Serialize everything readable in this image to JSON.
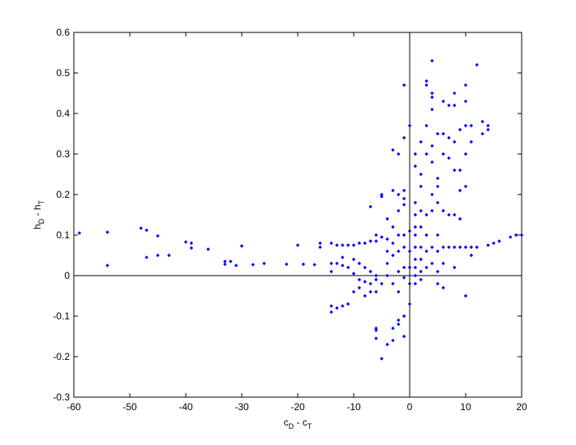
{
  "chart_data": {
    "type": "scatter",
    "xlabel": [
      "c",
      "D",
      " - c",
      "T"
    ],
    "ylabel": [
      "h",
      "D",
      " - h",
      "T"
    ],
    "xlim": [
      -60,
      20
    ],
    "xticks": [
      -60,
      -50,
      -40,
      -30,
      -20,
      -10,
      0,
      10,
      20
    ],
    "ylim": [
      -0.3,
      0.6
    ],
    "yticks": [
      -0.3,
      -0.2,
      -0.1,
      0,
      0.1,
      0.2,
      0.3,
      0.4,
      0.5,
      0.6
    ],
    "reference_lines": {
      "x": 0,
      "y": 0
    },
    "x": [
      -59,
      -54,
      -54,
      -48,
      -47,
      -47,
      -45,
      -45,
      -43,
      -40,
      -39,
      -39,
      -36,
      -33,
      -33,
      -32,
      -31,
      -30,
      -28,
      -26,
      -22,
      -20,
      -19,
      -17,
      -16,
      -16,
      -14,
      -14,
      -14,
      -14,
      -14,
      -13,
      -12,
      -11,
      -13,
      -12,
      -11,
      -10,
      -9,
      -8,
      -7,
      -6,
      -12,
      -10,
      -9,
      -8,
      -7,
      -6,
      -10,
      -9,
      -8,
      -7,
      -6,
      -5,
      -10,
      -9,
      -8,
      -7,
      -6,
      -11,
      -12,
      -13,
      -7,
      -6,
      -5,
      -5,
      -5,
      -4,
      -4,
      -4,
      -4,
      -4,
      -3,
      -3,
      -3,
      -3,
      -3,
      -3,
      -2,
      -2,
      -2,
      -2,
      -2,
      -2,
      -2,
      -1,
      -1,
      -1,
      -1,
      -1,
      -1,
      -1,
      -1,
      -1,
      -2,
      -3,
      -4,
      -5,
      -6,
      -6,
      -6,
      -3,
      -2,
      -1,
      -1,
      0,
      0,
      0,
      0,
      0,
      0,
      1,
      1,
      1,
      1,
      1,
      1,
      1,
      1,
      1,
      1,
      1,
      2,
      2,
      2,
      2,
      2,
      2,
      2,
      2,
      2,
      3,
      3,
      3,
      3,
      3,
      3,
      3,
      3,
      4,
      4,
      4,
      4,
      4,
      4,
      4,
      4,
      4,
      4,
      5,
      5,
      5,
      5,
      5,
      5,
      5,
      5,
      6,
      6,
      6,
      6,
      6,
      6,
      7,
      7,
      7,
      7,
      7,
      8,
      8,
      8,
      8,
      8,
      8,
      8,
      9,
      9,
      9,
      9,
      9,
      10,
      10,
      10,
      10,
      10,
      10,
      11,
      11,
      11,
      11,
      12,
      12,
      13,
      13,
      14,
      14,
      14,
      15,
      16,
      18,
      19,
      20,
      6,
      10
    ],
    "series": [
      {
        "color": "#0000ff",
        "values": [
          0.105,
          0.107,
          0.025,
          0.117,
          0.112,
          0.045,
          0.098,
          0.05,
          0.05,
          0.083,
          0.08,
          0.068,
          0.065,
          0.035,
          0.028,
          0.035,
          0.025,
          0.073,
          0.027,
          0.03,
          0.028,
          0.075,
          0.028,
          0.027,
          0.08,
          0.07,
          0.08,
          0.03,
          0.01,
          -0.075,
          -0.09,
          -0.08,
          -0.075,
          -0.07,
          0.075,
          0.075,
          0.075,
          0.075,
          0.08,
          0.08,
          0.085,
          0.085,
          0.045,
          0.04,
          0.03,
          0.02,
          0.01,
          0.0,
          0.005,
          -0.01,
          -0.015,
          -0.02,
          -0.01,
          -0.02,
          -0.04,
          -0.03,
          -0.05,
          -0.04,
          -0.04,
          0.02,
          0.025,
          0.03,
          0.17,
          0.1,
          0.095,
          0.2,
          0.195,
          0.14,
          0.09,
          0.06,
          0.03,
          0.0,
          0.31,
          0.21,
          0.12,
          0.08,
          0.05,
          -0.02,
          0.3,
          0.2,
          0.16,
          0.1,
          0.06,
          0.01,
          -0.04,
          0.34,
          0.21,
          0.175,
          0.1,
          0.07,
          0.02,
          -0.005,
          -0.1,
          -0.15,
          -0.12,
          -0.16,
          -0.17,
          -0.205,
          -0.13,
          -0.135,
          -0.155,
          -0.13,
          -0.11,
          0.47,
          0.19,
          0.37,
          0.11,
          0.06,
          0.02,
          -0.02,
          -0.07,
          0.3,
          0.27,
          0.18,
          0.15,
          0.12,
          0.1,
          0.07,
          0.04,
          0.02,
          0.0,
          -0.02,
          0.33,
          0.25,
          0.22,
          0.16,
          0.12,
          0.07,
          0.04,
          0.01,
          -0.01,
          0.48,
          0.47,
          0.37,
          0.3,
          0.15,
          0.1,
          0.06,
          0.02,
          0.53,
          0.45,
          0.44,
          0.41,
          0.32,
          0.28,
          0.2,
          0.16,
          0.07,
          0.03,
          0.35,
          0.24,
          0.22,
          0.18,
          0.1,
          0.06,
          0.01,
          -0.02,
          0.43,
          0.35,
          0.3,
          0.16,
          0.07,
          0.03,
          0.42,
          0.34,
          0.29,
          0.15,
          0.07,
          0.45,
          0.42,
          0.33,
          0.26,
          0.15,
          0.07,
          0.02,
          0.36,
          0.26,
          0.21,
          0.14,
          0.07,
          0.47,
          0.43,
          0.37,
          0.3,
          0.22,
          0.07,
          0.37,
          0.33,
          0.07,
          0.05,
          0.52,
          0.07,
          0.38,
          0.35,
          0.37,
          0.36,
          0.075,
          0.08,
          0.085,
          0.095,
          0.1,
          0.1,
          -0.03,
          -0.05
        ]
      }
    ]
  }
}
